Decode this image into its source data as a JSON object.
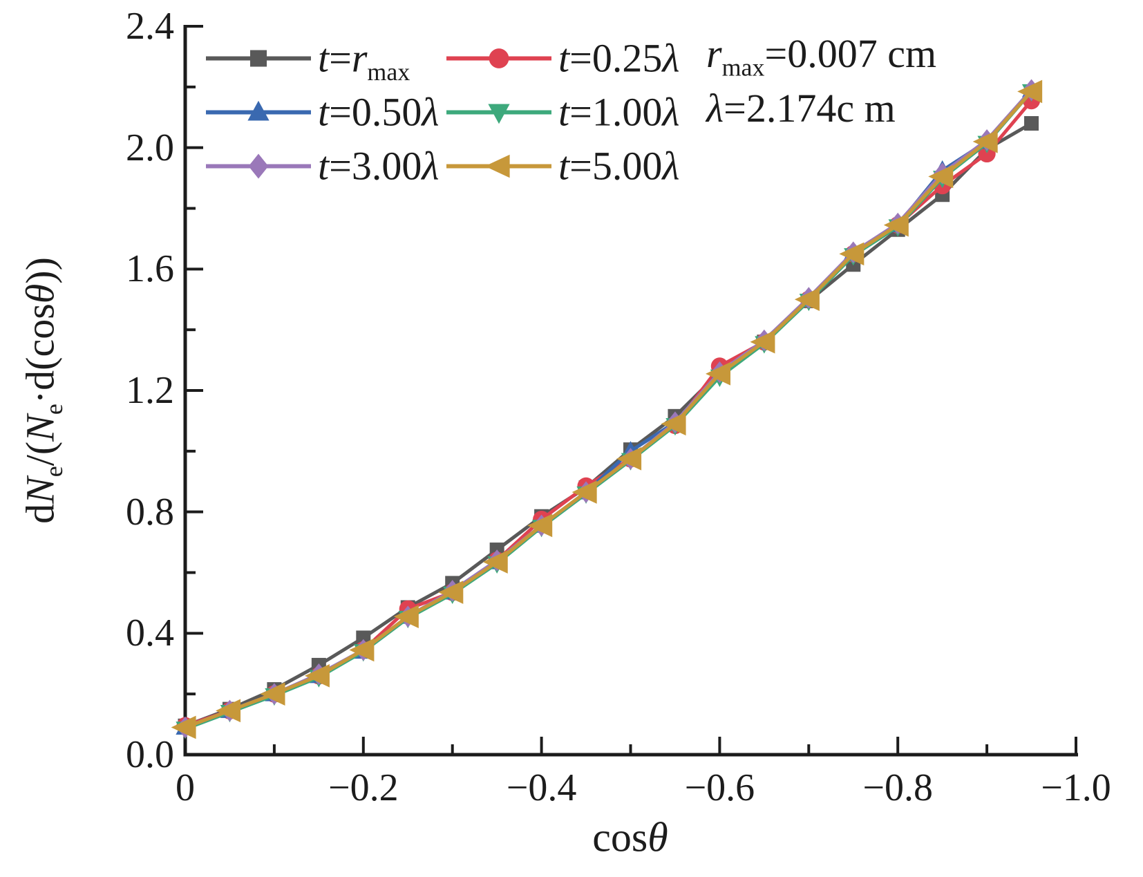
{
  "figure": {
    "background": "#ffffff",
    "axis_color": "#1c1c1c",
    "text_color": "#1c1c1c"
  },
  "axes": {
    "xlabel": "cosθ",
    "ylabel": "dN_e/(N_e·d(cosθ))",
    "x_ticks": [
      "0",
      "−0.2",
      "−0.4",
      "−0.6",
      "−0.8",
      "−1.0"
    ],
    "y_ticks": [
      "0.0",
      "0.4",
      "0.8",
      "1.2",
      "1.6",
      "2.0",
      "2.4"
    ]
  },
  "annotations": {
    "line1": "r_max=0.007 cm",
    "line2": "λ=2.174c m"
  },
  "chart_data": {
    "type": "line",
    "title": "",
    "xlabel": "cosθ",
    "ylabel": "dN_e/(N_e·d(cosθ))",
    "xlim": [
      0,
      -1.0
    ],
    "ylim": [
      0,
      2.4
    ],
    "x_tick_step": -0.2,
    "y_tick_step": 0.4,
    "x_minor_step": -0.1,
    "y_minor_step": 0.2,
    "grid": false,
    "legend_position": "top-left-inside",
    "x": [
      0,
      -0.05,
      -0.1,
      -0.15,
      -0.2,
      -0.25,
      -0.3,
      -0.35,
      -0.4,
      -0.45,
      -0.5,
      -0.55,
      -0.6,
      -0.65,
      -0.7,
      -0.75,
      -0.8,
      -0.85,
      -0.9,
      -0.95
    ],
    "series": [
      {
        "name": "t=r_max",
        "marker": "square",
        "color": "#595959",
        "values": [
          0.095,
          0.15,
          0.215,
          0.295,
          0.385,
          0.485,
          0.565,
          0.675,
          0.785,
          0.88,
          1.005,
          1.115,
          1.26,
          1.36,
          1.495,
          1.615,
          1.73,
          1.845,
          1.995,
          2.08
        ]
      },
      {
        "name": "t=0.25λ",
        "marker": "circle",
        "color": "#df4251",
        "values": [
          0.095,
          0.145,
          0.2,
          0.26,
          0.345,
          0.48,
          0.535,
          0.64,
          0.775,
          0.885,
          0.975,
          1.085,
          1.28,
          1.36,
          1.5,
          1.65,
          1.745,
          1.875,
          1.98,
          2.155
        ]
      },
      {
        "name": "t=0.50λ",
        "marker": "triangle-up",
        "color": "#3a69b0",
        "values": [
          0.09,
          0.145,
          0.2,
          0.26,
          0.34,
          0.455,
          0.535,
          0.635,
          0.755,
          0.865,
          1.0,
          1.095,
          1.255,
          1.365,
          1.5,
          1.655,
          1.745,
          1.925,
          2.02,
          2.19
        ]
      },
      {
        "name": "t=1.00λ",
        "marker": "triangle-down",
        "color": "#3da97c",
        "values": [
          0.085,
          0.14,
          0.195,
          0.255,
          0.34,
          0.45,
          0.53,
          0.63,
          0.75,
          0.86,
          0.97,
          1.085,
          1.245,
          1.355,
          1.495,
          1.645,
          1.74,
          1.9,
          2.015,
          2.185
        ]
      },
      {
        "name": "t=3.00λ",
        "marker": "diamond",
        "color": "#9a78b9",
        "values": [
          0.09,
          0.145,
          0.2,
          0.265,
          0.345,
          0.455,
          0.54,
          0.64,
          0.755,
          0.865,
          0.975,
          1.095,
          1.26,
          1.365,
          1.505,
          1.655,
          1.75,
          1.915,
          2.025,
          2.19
        ]
      },
      {
        "name": "t=5.00λ",
        "marker": "triangle-left",
        "color": "#c7983a",
        "values": [
          0.09,
          0.145,
          0.2,
          0.26,
          0.345,
          0.455,
          0.535,
          0.635,
          0.755,
          0.865,
          0.975,
          1.09,
          1.255,
          1.36,
          1.5,
          1.65,
          1.745,
          1.905,
          2.02,
          2.185
        ]
      }
    ]
  }
}
